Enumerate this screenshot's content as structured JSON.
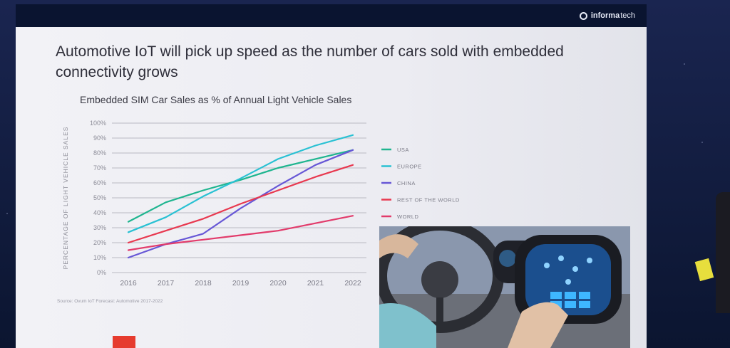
{
  "brand": {
    "icon": "informa-logo-icon",
    "name": "informa",
    "suffix": "tech"
  },
  "slide": {
    "headline": "Automotive IoT will pick up speed as the number of cars sold with embedded connectivity grows",
    "source": "Source: Ovum IoT Forecast: Automotive 2017-2022"
  },
  "chart_data": {
    "type": "line",
    "title": "Embedded SIM Car Sales as % of Annual Light Vehicle Sales",
    "ylabel": "PERCENTAGE OF LIGHT VEHICLE SALES",
    "xlabel": "",
    "x": [
      "2016",
      "2017",
      "2018",
      "2019",
      "2020",
      "2021",
      "2022"
    ],
    "ylim": [
      0,
      100
    ],
    "yticks": [
      "0%",
      "10%",
      "20%",
      "30%",
      "40%",
      "50%",
      "60%",
      "70%",
      "80%",
      "90%",
      "100%"
    ],
    "grid": true,
    "legend_position": "right",
    "series": [
      {
        "name": "USA",
        "color": "#1fb58f",
        "values": [
          34,
          47,
          55,
          62,
          70,
          76,
          82
        ]
      },
      {
        "name": "EUROPE",
        "color": "#29c1d3",
        "values": [
          27,
          37,
          51,
          63,
          76,
          85,
          92
        ]
      },
      {
        "name": "CHINA",
        "color": "#6757d6",
        "values": [
          10,
          19,
          26,
          43,
          58,
          72,
          82
        ]
      },
      {
        "name": "REST OF THE WORLD",
        "color": "#e8384f",
        "values": [
          20,
          28,
          36,
          46,
          55,
          64,
          72
        ]
      },
      {
        "name": "WORLD",
        "color": "#e23b6b",
        "values": [
          15,
          19,
          22,
          25,
          28,
          33,
          38
        ]
      }
    ]
  },
  "photo": {
    "icon": "car-dashboard-touchscreen-photo"
  }
}
